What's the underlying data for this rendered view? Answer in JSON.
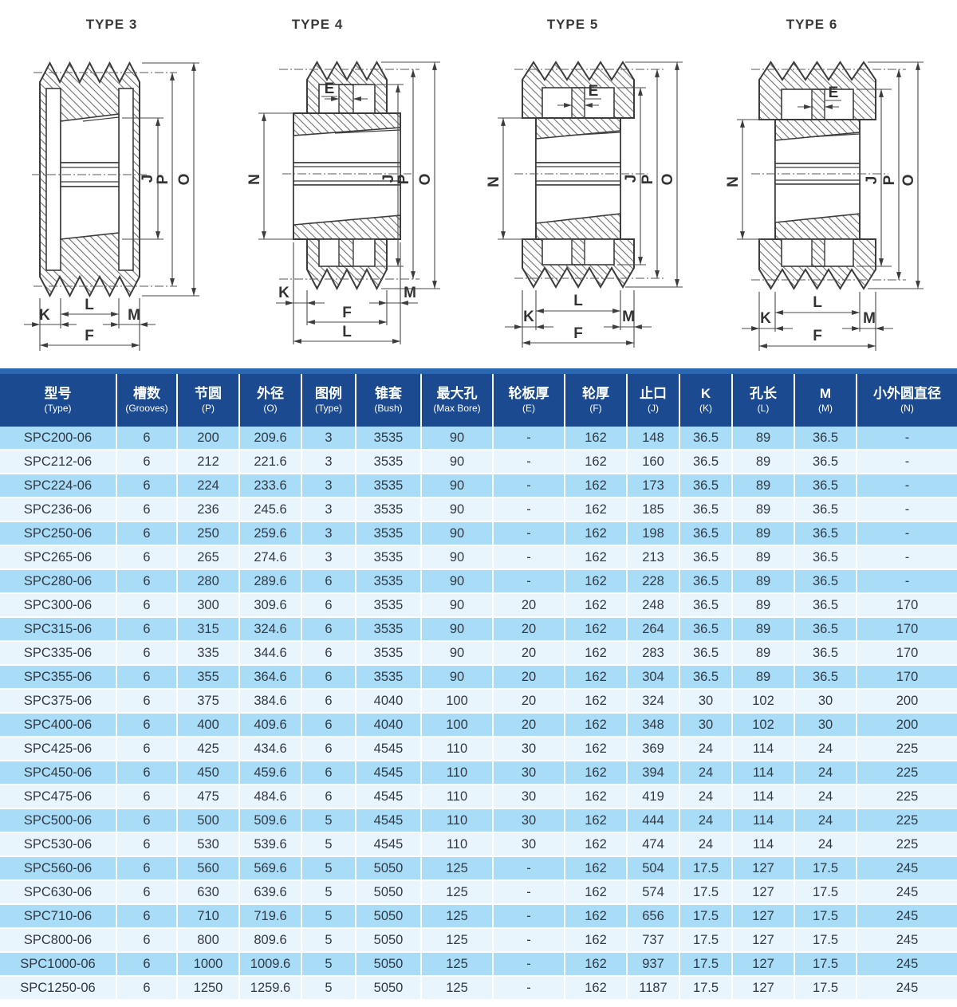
{
  "colors": {
    "header_bg": "#1b4a90",
    "top_border": "#2a67b0",
    "row_odd": "#a9dcf6",
    "row_even": "#e8f5fd",
    "body_text": "#333944",
    "line": "#3c3c3c"
  },
  "diagrams": [
    {
      "title": "TYPE 3",
      "dims": {
        "j": "J",
        "p": "P",
        "o": "O",
        "k": "K",
        "l": "L",
        "m": "M",
        "f": "F"
      }
    },
    {
      "title": "TYPE 4",
      "dims": {
        "e": "E",
        "n": "N",
        "j": "J",
        "p": "P",
        "o": "O",
        "k": "K",
        "l": "L",
        "m": "M",
        "f": "F"
      }
    },
    {
      "title": "TYPE 5",
      "dims": {
        "e": "E",
        "n": "N",
        "j": "J",
        "p": "P",
        "o": "O",
        "k": "K",
        "l": "L",
        "m": "M",
        "f": "F"
      }
    },
    {
      "title": "TYPE 6",
      "dims": {
        "e": "E",
        "n": "N",
        "j": "J",
        "p": "P",
        "o": "O",
        "k": "K",
        "l": "L",
        "m": "M",
        "f": "F"
      }
    }
  ],
  "table": {
    "columns": [
      {
        "zh": "型号",
        "en": "(Type)"
      },
      {
        "zh": "槽数",
        "en": "(Grooves)"
      },
      {
        "zh": "节圆",
        "en": "(P)"
      },
      {
        "zh": "外径",
        "en": "(O)"
      },
      {
        "zh": "图例",
        "en": "(Type)"
      },
      {
        "zh": "锥套",
        "en": "(Bush)"
      },
      {
        "zh": "最大孔",
        "en": "(Max Bore)"
      },
      {
        "zh": "轮板厚",
        "en": "(E)"
      },
      {
        "zh": "轮厚",
        "en": "(F)"
      },
      {
        "zh": "止口",
        "en": "(J)"
      },
      {
        "zh": "K",
        "en": "(K)"
      },
      {
        "zh": "孔长",
        "en": "(L)"
      },
      {
        "zh": "M",
        "en": "(M)"
      },
      {
        "zh": "小外圆直径",
        "en": "(N)"
      }
    ],
    "rows": [
      [
        "SPC200-06",
        "6",
        "200",
        "209.6",
        "3",
        "3535",
        "90",
        "-",
        "162",
        "148",
        "36.5",
        "89",
        "36.5",
        "-"
      ],
      [
        "SPC212-06",
        "6",
        "212",
        "221.6",
        "3",
        "3535",
        "90",
        "-",
        "162",
        "160",
        "36.5",
        "89",
        "36.5",
        "-"
      ],
      [
        "SPC224-06",
        "6",
        "224",
        "233.6",
        "3",
        "3535",
        "90",
        "-",
        "162",
        "173",
        "36.5",
        "89",
        "36.5",
        "-"
      ],
      [
        "SPC236-06",
        "6",
        "236",
        "245.6",
        "3",
        "3535",
        "90",
        "-",
        "162",
        "185",
        "36.5",
        "89",
        "36.5",
        "-"
      ],
      [
        "SPC250-06",
        "6",
        "250",
        "259.6",
        "3",
        "3535",
        "90",
        "-",
        "162",
        "198",
        "36.5",
        "89",
        "36.5",
        "-"
      ],
      [
        "SPC265-06",
        "6",
        "265",
        "274.6",
        "3",
        "3535",
        "90",
        "-",
        "162",
        "213",
        "36.5",
        "89",
        "36.5",
        "-"
      ],
      [
        "SPC280-06",
        "6",
        "280",
        "289.6",
        "6",
        "3535",
        "90",
        "-",
        "162",
        "228",
        "36.5",
        "89",
        "36.5",
        "-"
      ],
      [
        "SPC300-06",
        "6",
        "300",
        "309.6",
        "6",
        "3535",
        "90",
        "20",
        "162",
        "248",
        "36.5",
        "89",
        "36.5",
        "170"
      ],
      [
        "SPC315-06",
        "6",
        "315",
        "324.6",
        "6",
        "3535",
        "90",
        "20",
        "162",
        "264",
        "36.5",
        "89",
        "36.5",
        "170"
      ],
      [
        "SPC335-06",
        "6",
        "335",
        "344.6",
        "6",
        "3535",
        "90",
        "20",
        "162",
        "283",
        "36.5",
        "89",
        "36.5",
        "170"
      ],
      [
        "SPC355-06",
        "6",
        "355",
        "364.6",
        "6",
        "3535",
        "90",
        "20",
        "162",
        "304",
        "36.5",
        "89",
        "36.5",
        "170"
      ],
      [
        "SPC375-06",
        "6",
        "375",
        "384.6",
        "6",
        "4040",
        "100",
        "20",
        "162",
        "324",
        "30",
        "102",
        "30",
        "200"
      ],
      [
        "SPC400-06",
        "6",
        "400",
        "409.6",
        "6",
        "4040",
        "100",
        "20",
        "162",
        "348",
        "30",
        "102",
        "30",
        "200"
      ],
      [
        "SPC425-06",
        "6",
        "425",
        "434.6",
        "6",
        "4545",
        "110",
        "30",
        "162",
        "369",
        "24",
        "114",
        "24",
        "225"
      ],
      [
        "SPC450-06",
        "6",
        "450",
        "459.6",
        "6",
        "4545",
        "110",
        "30",
        "162",
        "394",
        "24",
        "114",
        "24",
        "225"
      ],
      [
        "SPC475-06",
        "6",
        "475",
        "484.6",
        "6",
        "4545",
        "110",
        "30",
        "162",
        "419",
        "24",
        "114",
        "24",
        "225"
      ],
      [
        "SPC500-06",
        "6",
        "500",
        "509.6",
        "5",
        "4545",
        "110",
        "30",
        "162",
        "444",
        "24",
        "114",
        "24",
        "225"
      ],
      [
        "SPC530-06",
        "6",
        "530",
        "539.6",
        "5",
        "4545",
        "110",
        "30",
        "162",
        "474",
        "24",
        "114",
        "24",
        "225"
      ],
      [
        "SPC560-06",
        "6",
        "560",
        "569.6",
        "5",
        "5050",
        "125",
        "-",
        "162",
        "504",
        "17.5",
        "127",
        "17.5",
        "245"
      ],
      [
        "SPC630-06",
        "6",
        "630",
        "639.6",
        "5",
        "5050",
        "125",
        "-",
        "162",
        "574",
        "17.5",
        "127",
        "17.5",
        "245"
      ],
      [
        "SPC710-06",
        "6",
        "710",
        "719.6",
        "5",
        "5050",
        "125",
        "-",
        "162",
        "656",
        "17.5",
        "127",
        "17.5",
        "245"
      ],
      [
        "SPC800-06",
        "6",
        "800",
        "809.6",
        "5",
        "5050",
        "125",
        "-",
        "162",
        "737",
        "17.5",
        "127",
        "17.5",
        "245"
      ],
      [
        "SPC1000-06",
        "6",
        "1000",
        "1009.6",
        "5",
        "5050",
        "125",
        "-",
        "162",
        "937",
        "17.5",
        "127",
        "17.5",
        "245"
      ],
      [
        "SPC1250-06",
        "6",
        "1250",
        "1259.6",
        "5",
        "5050",
        "125",
        "-",
        "162",
        "1187",
        "17.5",
        "127",
        "17.5",
        "245"
      ]
    ]
  }
}
